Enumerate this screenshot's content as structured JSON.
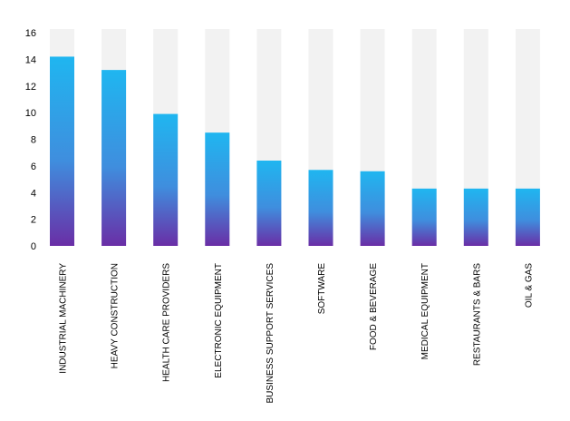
{
  "chart_data": {
    "type": "bar",
    "title": "",
    "xlabel": "",
    "ylabel": "",
    "ylim": [
      0,
      16
    ],
    "yticks": [
      0,
      2,
      4,
      6,
      8,
      10,
      12,
      14,
      16
    ],
    "categories": [
      "INDUSTRIAL MACHINERY",
      "HEAVY CONSTRUCTION",
      "HEALTH CARE PROVIDERS",
      "ELECTRONIC EQUIPMENT",
      "BUSINESS SUPPORT SERVICES",
      "SOFTWARE",
      "FOOD & BEVERAGE",
      "MEDICAL EQUIPMENT",
      "RESTAURANTS & BARS",
      "OIL & GAS"
    ],
    "values": [
      14.2,
      13.2,
      9.9,
      8.5,
      6.4,
      5.7,
      5.6,
      4.3,
      4.3,
      4.3
    ],
    "grid": false,
    "legend": "none",
    "colors": {
      "bar_top": "#1fb6f0",
      "bar_bottom": "#6a2ea6",
      "background_bar": "#f2f2f2"
    }
  }
}
